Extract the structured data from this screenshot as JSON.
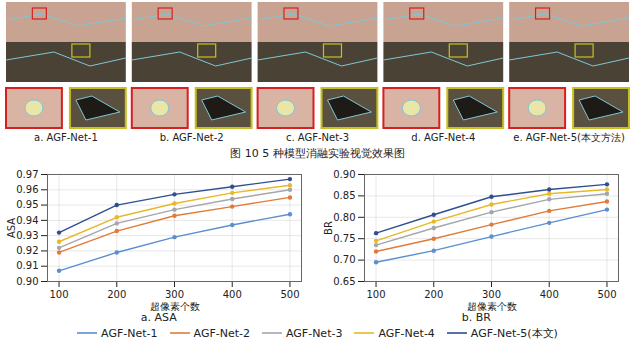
{
  "figure": {
    "caption": "图 10  5 种模型消融实验视觉效果图",
    "panels": [
      "a. AGF-Net-1",
      "b. AGF-Net-2",
      "c. AGF-Net-3",
      "d. AGF-Net-4",
      "e. AGF-Net-5(本文方法)"
    ]
  },
  "chart_data": [
    {
      "type": "line",
      "subtitle": "a. ASA",
      "x_label": "超像素个数",
      "y_label": "ASA",
      "x": [
        100,
        200,
        300,
        400,
        500
      ],
      "xlim": [
        80,
        520
      ],
      "xticks": [
        100,
        200,
        300,
        400,
        500
      ],
      "ylim": [
        0.9,
        0.97
      ],
      "yticks": [
        {
          "value": 0.9,
          "label": "0.90"
        },
        0.91,
        0.92,
        0.93,
        0.94,
        0.95,
        0.96,
        0.97
      ],
      "grid": true,
      "legend": "bottom",
      "marker": "circle",
      "series": [
        {
          "name": "AGF-Net-1",
          "color": "#5b8fd0",
          "values": [
            0.907,
            0.919,
            0.929,
            0.937,
            0.944
          ]
        },
        {
          "name": "AGF-Net-2",
          "color": "#e07b39",
          "values": [
            0.919,
            0.933,
            0.943,
            0.949,
            0.955
          ]
        },
        {
          "name": "AGF-Net-3",
          "color": "#a3a6aa",
          "values": [
            0.922,
            0.938,
            0.947,
            0.954,
            0.96
          ]
        },
        {
          "name": "AGF-Net-4",
          "color": "#e8b828",
          "values": [
            0.926,
            0.942,
            0.951,
            0.958,
            0.963
          ]
        },
        {
          "name": "AGF-Net-5(本文)",
          "color": "#2f4f91",
          "values": [
            0.932,
            0.95,
            0.957,
            0.962,
            0.967
          ]
        }
      ]
    },
    {
      "type": "line",
      "subtitle": "b. BR",
      "x_label": "超像素个数",
      "y_label": "BR",
      "x": [
        100,
        200,
        300,
        400,
        500
      ],
      "xlim": [
        80,
        520
      ],
      "xticks": [
        100,
        200,
        300,
        400,
        500
      ],
      "ylim": [
        0.65,
        0.9
      ],
      "yticks": [
        0.65,
        {
          "value": 0.7,
          "label": "0.70"
        },
        0.75,
        {
          "value": 0.8,
          "label": "0.80"
        },
        0.85,
        {
          "value": 0.9,
          "label": "0.90"
        }
      ],
      "grid": true,
      "legend": "bottom",
      "marker": "circle",
      "series": [
        {
          "name": "AGF-Net-1",
          "color": "#5b8fd0",
          "values": [
            0.695,
            0.722,
            0.755,
            0.787,
            0.818
          ]
        },
        {
          "name": "AGF-Net-2",
          "color": "#e07b39",
          "values": [
            0.72,
            0.75,
            0.783,
            0.815,
            0.837
          ]
        },
        {
          "name": "AGF-Net-3",
          "color": "#a3a6aa",
          "values": [
            0.735,
            0.775,
            0.812,
            0.842,
            0.855
          ]
        },
        {
          "name": "AGF-Net-4",
          "color": "#e8b828",
          "values": [
            0.745,
            0.79,
            0.83,
            0.855,
            0.865
          ]
        },
        {
          "name": "AGF-Net-5(本文)",
          "color": "#2f4f91",
          "values": [
            0.763,
            0.806,
            0.848,
            0.865,
            0.877
          ]
        }
      ]
    }
  ]
}
